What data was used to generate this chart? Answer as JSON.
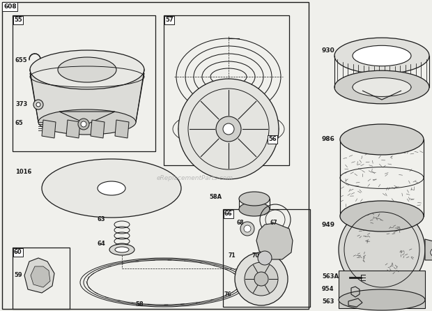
{
  "bg_color": "#f0f0ec",
  "line_color": "#1a1a1a",
  "watermark": "eReplacementParts.com",
  "figsize": [
    6.2,
    4.46
  ],
  "dpi": 100
}
